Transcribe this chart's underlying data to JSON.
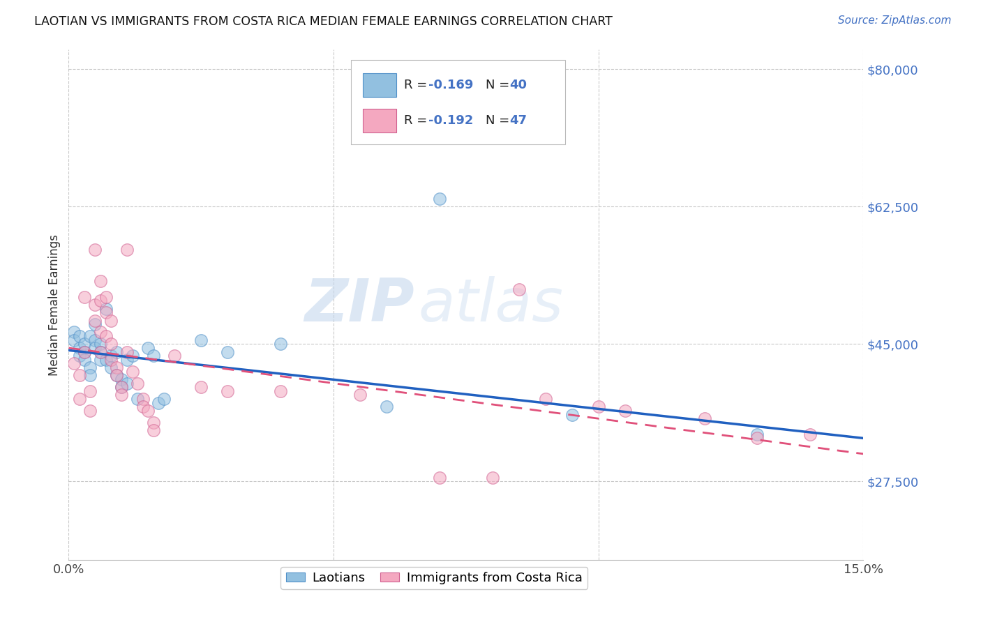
{
  "title": "LAOTIAN VS IMMIGRANTS FROM COSTA RICA MEDIAN FEMALE EARNINGS CORRELATION CHART",
  "source": "Source: ZipAtlas.com",
  "ylabel": "Median Female Earnings",
  "xlim": [
    0.0,
    0.15
  ],
  "ylim": [
    17500,
    82500
  ],
  "yticks": [
    27500,
    45000,
    62500,
    80000
  ],
  "ytick_labels": [
    "$27,500",
    "$45,000",
    "$62,500",
    "$80,000"
  ],
  "xticks": [
    0.0,
    0.05,
    0.1,
    0.15
  ],
  "xtick_labels": [
    "0.0%",
    "",
    "",
    "15.0%"
  ],
  "watermark_zip": "ZIP",
  "watermark_atlas": "atlas",
  "blue_color": "#92c0e0",
  "pink_color": "#f4a8c0",
  "blue_line_color": "#2060c0",
  "pink_line_color": "#e0507a",
  "blue_scatter": [
    [
      0.001,
      46500
    ],
    [
      0.001,
      45500
    ],
    [
      0.002,
      46000
    ],
    [
      0.002,
      44500
    ],
    [
      0.002,
      43500
    ],
    [
      0.003,
      45000
    ],
    [
      0.003,
      44000
    ],
    [
      0.003,
      43000
    ],
    [
      0.004,
      46000
    ],
    [
      0.004,
      42000
    ],
    [
      0.004,
      41000
    ],
    [
      0.005,
      47500
    ],
    [
      0.005,
      45500
    ],
    [
      0.005,
      44500
    ],
    [
      0.006,
      45000
    ],
    [
      0.006,
      44000
    ],
    [
      0.006,
      43000
    ],
    [
      0.007,
      49500
    ],
    [
      0.007,
      43000
    ],
    [
      0.008,
      43500
    ],
    [
      0.008,
      42000
    ],
    [
      0.009,
      44000
    ],
    [
      0.009,
      41000
    ],
    [
      0.01,
      40500
    ],
    [
      0.01,
      39500
    ],
    [
      0.011,
      43000
    ],
    [
      0.011,
      40000
    ],
    [
      0.012,
      43500
    ],
    [
      0.013,
      38000
    ],
    [
      0.015,
      44500
    ],
    [
      0.016,
      43500
    ],
    [
      0.017,
      37500
    ],
    [
      0.018,
      38000
    ],
    [
      0.025,
      45500
    ],
    [
      0.03,
      44000
    ],
    [
      0.04,
      45000
    ],
    [
      0.06,
      37000
    ],
    [
      0.07,
      63500
    ],
    [
      0.095,
      36000
    ],
    [
      0.13,
      33500
    ]
  ],
  "pink_scatter": [
    [
      0.001,
      42500
    ],
    [
      0.002,
      41000
    ],
    [
      0.002,
      38000
    ],
    [
      0.003,
      51000
    ],
    [
      0.003,
      44000
    ],
    [
      0.004,
      36500
    ],
    [
      0.004,
      39000
    ],
    [
      0.005,
      57000
    ],
    [
      0.005,
      50000
    ],
    [
      0.005,
      48000
    ],
    [
      0.006,
      53000
    ],
    [
      0.006,
      50500
    ],
    [
      0.006,
      46500
    ],
    [
      0.006,
      44000
    ],
    [
      0.007,
      51000
    ],
    [
      0.007,
      49000
    ],
    [
      0.007,
      46000
    ],
    [
      0.008,
      48000
    ],
    [
      0.008,
      45000
    ],
    [
      0.008,
      43000
    ],
    [
      0.009,
      42000
    ],
    [
      0.009,
      41000
    ],
    [
      0.01,
      39500
    ],
    [
      0.01,
      38500
    ],
    [
      0.011,
      57000
    ],
    [
      0.011,
      44000
    ],
    [
      0.012,
      41500
    ],
    [
      0.013,
      40000
    ],
    [
      0.014,
      38000
    ],
    [
      0.014,
      37000
    ],
    [
      0.015,
      36500
    ],
    [
      0.016,
      35000
    ],
    [
      0.016,
      34000
    ],
    [
      0.02,
      43500
    ],
    [
      0.025,
      39500
    ],
    [
      0.03,
      39000
    ],
    [
      0.04,
      39000
    ],
    [
      0.055,
      38500
    ],
    [
      0.07,
      28000
    ],
    [
      0.08,
      28000
    ],
    [
      0.085,
      52000
    ],
    [
      0.09,
      38000
    ],
    [
      0.1,
      37000
    ],
    [
      0.105,
      36500
    ],
    [
      0.12,
      35500
    ],
    [
      0.13,
      33000
    ],
    [
      0.14,
      33500
    ]
  ],
  "figsize": [
    14.06,
    8.92
  ],
  "dpi": 100
}
